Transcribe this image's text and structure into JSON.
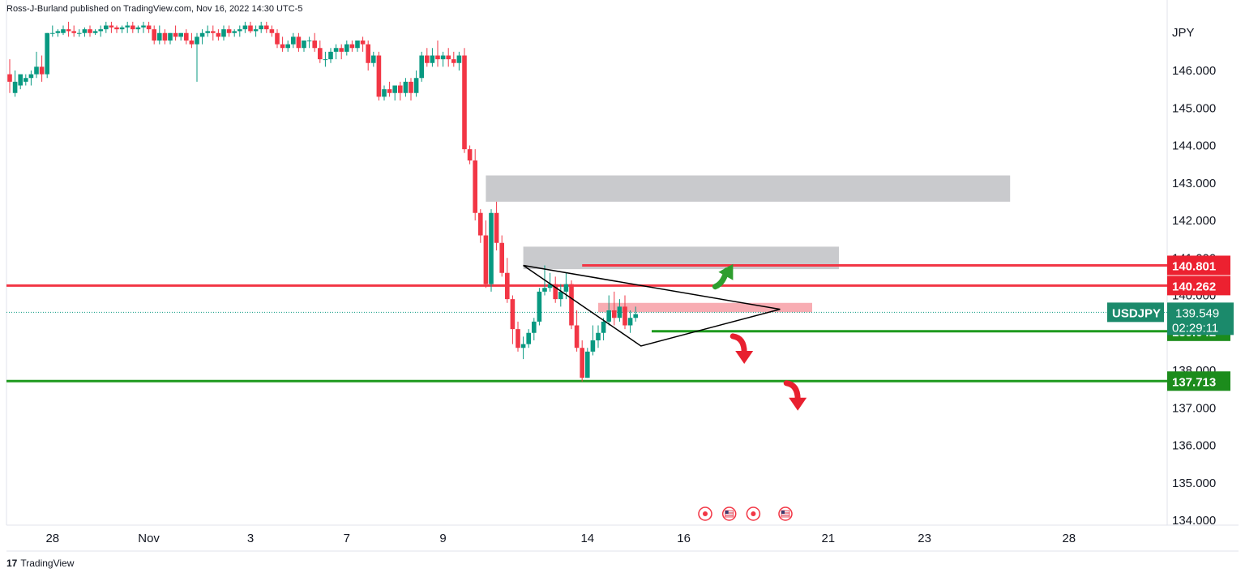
{
  "header": {
    "text": "Ross-J-Burland published on TradingView.com, Nov 16, 2022 14:30 UTC-5"
  },
  "footer": {
    "logo_text": "17",
    "brand": "TradingView"
  },
  "colors": {
    "up": "#089981",
    "down": "#f23645",
    "red_line": "#f23645",
    "green_line": "#26a69a",
    "green_tag": "#1c8c1c",
    "red_tag": "#ec2130",
    "zone_gray": "#c9cacd",
    "zone_red": "#f7a4ab",
    "symbol_tag": "#1b8a6b"
  },
  "chart_data": {
    "type": "candlestick",
    "symbol": "USDJPY",
    "currency_label": "JPY",
    "ylim": [
      133.9,
      147.0
    ],
    "y_ticks": [
      "146.000",
      "145.000",
      "144.000",
      "143.000",
      "142.000",
      "141.000",
      "140.000",
      "138.000",
      "137.000",
      "136.000",
      "135.000",
      "134.000"
    ],
    "x_ticks": [
      {
        "label": "28",
        "bar": 8
      },
      {
        "label": "Nov",
        "bar": 26
      },
      {
        "label": "3",
        "bar": 45
      },
      {
        "label": "7",
        "bar": 63
      },
      {
        "label": "9",
        "bar": 81
      },
      {
        "label": "14",
        "bar": 108
      },
      {
        "label": "16",
        "bar": 126
      },
      {
        "label": "21",
        "bar": 153
      },
      {
        "label": "23",
        "bar": 171
      },
      {
        "label": "28",
        "bar": 198
      }
    ],
    "candles": [
      [
        145.9,
        146.3,
        145.7,
        145.4
      ],
      [
        145.4,
        146.0,
        145.7,
        145.3
      ],
      [
        145.6,
        145.8,
        145.9,
        145.5
      ],
      [
        145.7,
        145.9,
        145.8,
        145.6
      ],
      [
        145.8,
        146.0,
        145.9,
        145.6
      ],
      [
        145.9,
        146.5,
        146.1,
        145.8
      ],
      [
        146.1,
        146.4,
        145.9,
        145.7
      ],
      [
        145.9,
        147.0,
        147.0,
        145.8
      ],
      [
        147.0,
        147.2,
        147.0,
        146.9
      ],
      [
        147.0,
        147.1,
        147.05,
        146.9
      ],
      [
        147.0,
        147.2,
        147.1,
        146.95
      ],
      [
        147.1,
        147.3,
        147.05,
        146.9
      ],
      [
        147.05,
        147.2,
        147.0,
        146.9
      ],
      [
        147.0,
        147.1,
        147.0,
        146.9
      ],
      [
        147.0,
        147.15,
        147.1,
        146.9
      ],
      [
        147.1,
        147.2,
        147.0,
        146.9
      ],
      [
        147.0,
        147.1,
        147.05,
        146.95
      ],
      [
        147.05,
        147.2,
        147.1,
        146.9
      ],
      [
        147.1,
        147.3,
        147.2,
        147.0
      ],
      [
        147.2,
        147.3,
        147.15,
        147.0
      ],
      [
        147.15,
        147.2,
        147.1,
        147.0
      ],
      [
        147.1,
        147.2,
        147.15,
        147.0
      ],
      [
        147.15,
        147.3,
        147.2,
        147.0
      ],
      [
        147.2,
        147.3,
        147.1,
        147.0
      ],
      [
        147.1,
        147.2,
        147.15,
        147.0
      ],
      [
        147.15,
        147.3,
        147.2,
        147.0
      ],
      [
        147.2,
        147.3,
        147.1,
        147.0
      ],
      [
        147.1,
        147.2,
        146.8,
        146.7
      ],
      [
        146.8,
        147.2,
        147.0,
        146.7
      ],
      [
        147.0,
        147.1,
        146.8,
        146.7
      ],
      [
        146.8,
        147.0,
        147.0,
        146.7
      ],
      [
        147.0,
        147.2,
        146.9,
        146.8
      ],
      [
        146.9,
        147.0,
        147.0,
        146.8
      ],
      [
        147.0,
        147.1,
        146.8,
        146.7
      ],
      [
        146.8,
        147.0,
        146.7,
        146.6
      ],
      [
        146.7,
        147.0,
        146.9,
        145.7
      ],
      [
        146.9,
        147.1,
        147.0,
        146.7
      ],
      [
        147.0,
        147.2,
        147.05,
        146.9
      ],
      [
        147.05,
        147.2,
        147.0,
        146.8
      ],
      [
        147.0,
        147.1,
        146.9,
        146.8
      ],
      [
        146.9,
        147.2,
        147.1,
        146.8
      ],
      [
        147.1,
        147.2,
        147.0,
        146.9
      ],
      [
        147.0,
        147.1,
        147.05,
        146.9
      ],
      [
        147.05,
        147.2,
        147.1,
        146.9
      ],
      [
        147.1,
        147.3,
        147.2,
        147.0
      ],
      [
        147.2,
        147.3,
        147.05,
        147.0
      ],
      [
        147.05,
        147.2,
        147.1,
        146.9
      ],
      [
        147.1,
        147.3,
        147.2,
        147.0
      ],
      [
        147.2,
        147.3,
        147.1,
        147.0
      ],
      [
        147.1,
        147.2,
        147.0,
        146.9
      ],
      [
        147.0,
        147.1,
        146.7,
        146.6
      ],
      [
        146.7,
        146.9,
        146.6,
        146.5
      ],
      [
        146.6,
        146.8,
        146.7,
        146.5
      ],
      [
        146.7,
        147.0,
        146.9,
        146.6
      ],
      [
        146.9,
        147.0,
        146.6,
        146.5
      ],
      [
        146.6,
        146.8,
        146.8,
        146.5
      ],
      [
        146.8,
        146.9,
        146.8,
        146.6
      ],
      [
        146.8,
        147.0,
        146.6,
        146.5
      ],
      [
        146.6,
        146.8,
        146.3,
        146.2
      ],
      [
        146.3,
        146.5,
        146.3,
        146.1
      ],
      [
        146.3,
        146.6,
        146.5,
        146.2
      ],
      [
        146.5,
        146.7,
        146.6,
        146.3
      ],
      [
        146.6,
        146.7,
        146.5,
        146.3
      ],
      [
        146.5,
        146.8,
        146.7,
        146.4
      ],
      [
        146.7,
        146.8,
        146.6,
        146.5
      ],
      [
        146.6,
        146.8,
        146.8,
        146.5
      ],
      [
        146.8,
        146.9,
        146.7,
        146.5
      ],
      [
        146.7,
        146.8,
        146.2,
        146.0
      ],
      [
        146.2,
        146.5,
        146.4,
        146.1
      ],
      [
        146.4,
        146.5,
        145.3,
        145.2
      ],
      [
        145.3,
        145.6,
        145.5,
        145.2
      ],
      [
        145.5,
        145.7,
        145.4,
        145.3
      ],
      [
        145.4,
        145.6,
        145.6,
        145.2
      ],
      [
        145.6,
        145.7,
        145.4,
        145.2
      ],
      [
        145.4,
        145.8,
        145.7,
        145.3
      ],
      [
        145.7,
        145.8,
        145.4,
        145.2
      ],
      [
        145.4,
        146.0,
        145.8,
        145.3
      ],
      [
        145.8,
        146.5,
        146.4,
        145.7
      ],
      [
        146.4,
        146.6,
        146.2,
        146.1
      ],
      [
        146.2,
        146.6,
        146.4,
        146.1
      ],
      [
        146.4,
        146.8,
        146.3,
        146.1
      ],
      [
        146.3,
        146.5,
        146.4,
        146.1
      ],
      [
        146.4,
        146.6,
        146.3,
        146.1
      ],
      [
        146.3,
        146.5,
        146.2,
        146.1
      ],
      [
        146.2,
        146.5,
        146.4,
        146.0
      ],
      [
        146.4,
        146.6,
        143.9,
        143.8
      ],
      [
        143.9,
        144.0,
        143.6,
        143.5
      ],
      [
        143.6,
        143.9,
        142.2,
        142.0
      ],
      [
        142.2,
        142.3,
        141.6,
        141.4
      ],
      [
        141.6,
        142.0,
        140.3,
        140.2
      ],
      [
        140.3,
        142.3,
        142.2,
        140.1
      ],
      [
        142.2,
        142.5,
        141.4,
        141.2
      ],
      [
        141.4,
        141.6,
        140.6,
        140.5
      ],
      [
        140.6,
        141.0,
        139.9,
        139.8
      ],
      [
        139.9,
        140.0,
        139.1,
        138.7
      ],
      [
        139.1,
        139.3,
        138.6,
        138.5
      ],
      [
        138.6,
        138.9,
        138.7,
        138.3
      ],
      [
        138.7,
        139.1,
        139.0,
        138.6
      ],
      [
        139.0,
        139.4,
        139.3,
        138.8
      ],
      [
        139.3,
        140.2,
        140.1,
        139.2
      ],
      [
        140.1,
        140.8,
        140.2,
        140.0
      ],
      [
        140.2,
        140.6,
        140.3,
        140.1
      ],
      [
        140.3,
        140.5,
        139.9,
        139.8
      ],
      [
        139.9,
        140.3,
        140.1,
        139.7
      ],
      [
        140.1,
        140.6,
        140.3,
        139.9
      ],
      [
        140.3,
        140.4,
        139.2,
        139.1
      ],
      [
        139.2,
        139.6,
        138.6,
        138.5
      ],
      [
        138.6,
        138.8,
        137.8,
        137.7
      ],
      [
        137.8,
        138.6,
        138.5,
        137.8
      ],
      [
        138.5,
        139.2,
        138.8,
        138.4
      ],
      [
        138.8,
        139.2,
        139.0,
        138.6
      ],
      [
        139.0,
        139.4,
        139.3,
        138.8
      ],
      [
        139.3,
        140.0,
        139.6,
        139.2
      ],
      [
        139.6,
        140.1,
        139.4,
        139.2
      ],
      [
        139.4,
        139.9,
        139.7,
        139.3
      ],
      [
        139.7,
        140.0,
        139.2,
        139.1
      ],
      [
        139.2,
        139.6,
        139.4,
        139.0
      ],
      [
        139.4,
        139.7,
        139.5,
        139.3
      ]
    ],
    "price_lines": [
      {
        "name": "resistance-140801",
        "value": 140.801,
        "color": "red",
        "label": "140.801",
        "x_start_bar": 107
      },
      {
        "name": "resistance-140262",
        "value": 140.262,
        "color": "red",
        "label": "140.262",
        "x_start_bar": 0
      },
      {
        "name": "support-139042",
        "value": 139.042,
        "color": "green",
        "label": "139.042",
        "x_start_bar": 120
      },
      {
        "name": "support-137713",
        "value": 137.713,
        "color": "green",
        "label": "137.713",
        "x_start_bar": 0
      }
    ],
    "current_price": {
      "label": "139.549",
      "value": 139.549,
      "countdown": "02:29:11",
      "symbol": "USDJPY"
    },
    "zones": [
      {
        "name": "supply-zone-upper",
        "color": "gray",
        "y_top": 143.2,
        "y_bottom": 142.5,
        "x_start_bar": 89,
        "x_end_bar": 187
      },
      {
        "name": "supply-zone-lower",
        "color": "gray",
        "y_top": 141.3,
        "y_bottom": 140.7,
        "x_start_bar": 96,
        "x_end_bar": 155
      },
      {
        "name": "price-zone-red",
        "color": "red",
        "y_top": 139.8,
        "y_bottom": 139.55,
        "x_start_bar": 110,
        "x_end_bar": 150
      }
    ],
    "triangle": {
      "points": [
        [
          96,
          140.8
        ],
        [
          144,
          139.63
        ],
        [
          118,
          138.65
        ]
      ]
    },
    "event_icons": [
      {
        "name": "event-circle-icon",
        "bar": 130,
        "type": "circle"
      },
      {
        "name": "event-flag-us-icon",
        "bar": 134.5,
        "type": "flag"
      },
      {
        "name": "event-circle-icon",
        "bar": 139,
        "type": "circle"
      },
      {
        "name": "event-flag-us-icon",
        "bar": 145,
        "type": "flag"
      }
    ],
    "arrows": [
      {
        "name": "bullish-arrow-icon",
        "direction": "up",
        "color": "green",
        "bar": 134,
        "y": 140.45
      },
      {
        "name": "bearish-arrow-icon",
        "direction": "down",
        "color": "red",
        "bar": 137,
        "y": 138.65
      },
      {
        "name": "bearish-arrow-icon-2",
        "direction": "down",
        "color": "red",
        "bar": 147,
        "y": 137.4
      }
    ]
  }
}
